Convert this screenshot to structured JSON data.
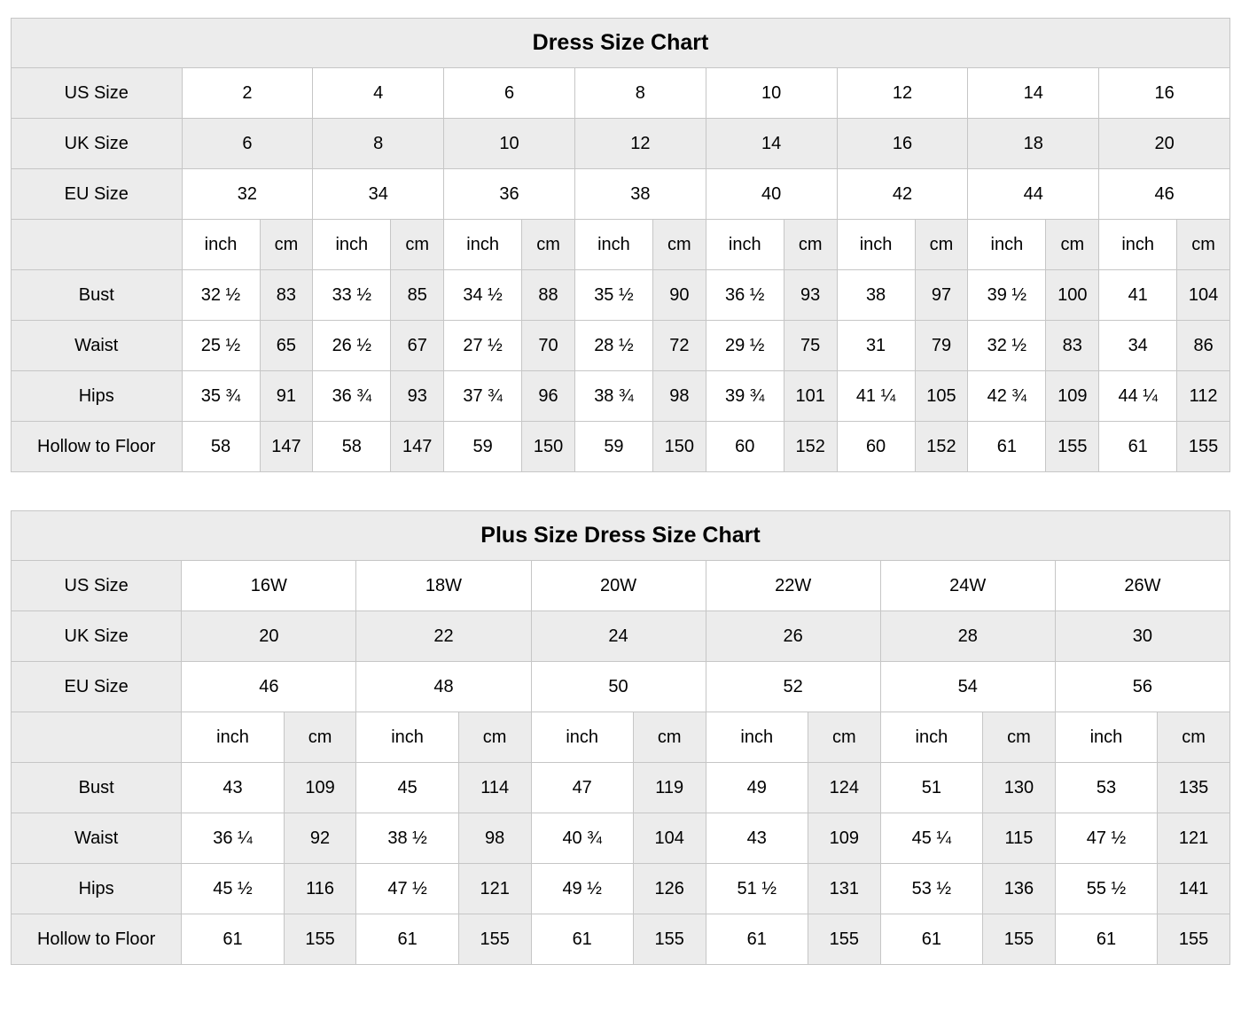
{
  "colors": {
    "cell_shaded": "#ececec",
    "cell_white": "#ffffff",
    "border": "#c6c6c6",
    "text": "#000000"
  },
  "chart_data": [
    {
      "type": "table",
      "title": "Dress Size Chart",
      "unit_labels": [
        "inch",
        "cm"
      ],
      "size_rows": [
        {
          "label": "US Size",
          "shaded": false,
          "values": [
            "2",
            "4",
            "6",
            "8",
            "10",
            "12",
            "14",
            "16"
          ]
        },
        {
          "label": "UK Size",
          "shaded": true,
          "values": [
            "6",
            "8",
            "10",
            "12",
            "14",
            "16",
            "18",
            "20"
          ]
        },
        {
          "label": "EU Size",
          "shaded": false,
          "values": [
            "32",
            "34",
            "36",
            "38",
            "40",
            "42",
            "44",
            "46"
          ]
        }
      ],
      "measure_rows": [
        {
          "label": "Bust",
          "pairs": [
            [
              "32 ½",
              "83"
            ],
            [
              "33 ½",
              "85"
            ],
            [
              "34 ½",
              "88"
            ],
            [
              "35 ½",
              "90"
            ],
            [
              "36 ½",
              "93"
            ],
            [
              "38",
              "97"
            ],
            [
              "39 ½",
              "100"
            ],
            [
              "41",
              "104"
            ]
          ]
        },
        {
          "label": "Waist",
          "pairs": [
            [
              "25 ½",
              "65"
            ],
            [
              "26 ½",
              "67"
            ],
            [
              "27 ½",
              "70"
            ],
            [
              "28 ½",
              "72"
            ],
            [
              "29 ½",
              "75"
            ],
            [
              "31",
              "79"
            ],
            [
              "32 ½",
              "83"
            ],
            [
              "34",
              "86"
            ]
          ]
        },
        {
          "label": "Hips",
          "pairs": [
            [
              "35 ¾",
              "91"
            ],
            [
              "36 ¾",
              "93"
            ],
            [
              "37 ¾",
              "96"
            ],
            [
              "38 ¾",
              "98"
            ],
            [
              "39 ¾",
              "101"
            ],
            [
              "41 ¼",
              "105"
            ],
            [
              "42 ¾",
              "109"
            ],
            [
              "44 ¼",
              "112"
            ]
          ]
        },
        {
          "label": "Hollow to Floor",
          "pairs": [
            [
              "58",
              "147"
            ],
            [
              "58",
              "147"
            ],
            [
              "59",
              "150"
            ],
            [
              "59",
              "150"
            ],
            [
              "60",
              "152"
            ],
            [
              "60",
              "152"
            ],
            [
              "61",
              "155"
            ],
            [
              "61",
              "155"
            ]
          ]
        }
      ]
    },
    {
      "type": "table",
      "title": "Plus Size Dress Size Chart",
      "unit_labels": [
        "inch",
        "cm"
      ],
      "size_rows": [
        {
          "label": "US Size",
          "shaded": false,
          "values": [
            "16W",
            "18W",
            "20W",
            "22W",
            "24W",
            "26W"
          ]
        },
        {
          "label": "UK Size",
          "shaded": true,
          "values": [
            "20",
            "22",
            "24",
            "26",
            "28",
            "30"
          ]
        },
        {
          "label": "EU Size",
          "shaded": false,
          "values": [
            "46",
            "48",
            "50",
            "52",
            "54",
            "56"
          ]
        }
      ],
      "measure_rows": [
        {
          "label": "Bust",
          "pairs": [
            [
              "43",
              "109"
            ],
            [
              "45",
              "114"
            ],
            [
              "47",
              "119"
            ],
            [
              "49",
              "124"
            ],
            [
              "51",
              "130"
            ],
            [
              "53",
              "135"
            ]
          ]
        },
        {
          "label": "Waist",
          "pairs": [
            [
              "36 ¼",
              "92"
            ],
            [
              "38 ½",
              "98"
            ],
            [
              "40 ¾",
              "104"
            ],
            [
              "43",
              "109"
            ],
            [
              "45 ¼",
              "115"
            ],
            [
              "47 ½",
              "121"
            ]
          ]
        },
        {
          "label": "Hips",
          "pairs": [
            [
              "45 ½",
              "116"
            ],
            [
              "47 ½",
              "121"
            ],
            [
              "49 ½",
              "126"
            ],
            [
              "51 ½",
              "131"
            ],
            [
              "53 ½",
              "136"
            ],
            [
              "55 ½",
              "141"
            ]
          ]
        },
        {
          "label": "Hollow to Floor",
          "pairs": [
            [
              "61",
              "155"
            ],
            [
              "61",
              "155"
            ],
            [
              "61",
              "155"
            ],
            [
              "61",
              "155"
            ],
            [
              "61",
              "155"
            ],
            [
              "61",
              "155"
            ]
          ]
        }
      ]
    }
  ]
}
